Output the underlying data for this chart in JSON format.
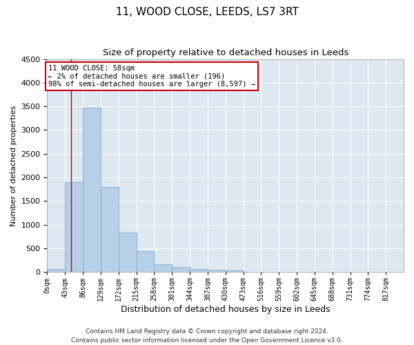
{
  "title": "11, WOOD CLOSE, LEEDS, LS7 3RT",
  "subtitle": "Size of property relative to detached houses in Leeds",
  "xlabel": "Distribution of detached houses by size in Leeds",
  "ylabel": "Number of detached properties",
  "bar_color": "#b8cfe8",
  "bar_edgecolor": "#7aaad0",
  "background_color": "#dde8f0",
  "grid_color": "#ffffff",
  "property_sqm": 58,
  "annotation_line1": "11 WOOD CLOSE: 58sqm",
  "annotation_line2": "← 2% of detached houses are smaller (196)",
  "annotation_line3": "98% of semi-detached houses are larger (8,597) →",
  "annotation_box_color": "#ffffff",
  "annotation_box_edgecolor": "#cc0000",
  "redline_color": "#cc0000",
  "bin_edges": [
    0,
    43,
    86,
    129,
    172,
    215,
    258,
    301,
    344,
    387,
    430,
    473,
    516,
    559,
    602,
    645,
    688,
    731,
    774,
    817,
    860
  ],
  "bar_heights": [
    55,
    1900,
    3480,
    1790,
    840,
    440,
    165,
    110,
    65,
    42,
    28,
    0,
    0,
    0,
    0,
    0,
    0,
    0,
    0,
    0
  ],
  "ylim": [
    0,
    4500
  ],
  "yticks": [
    0,
    500,
    1000,
    1500,
    2000,
    2500,
    3000,
    3500,
    4000,
    4500
  ],
  "footer_text": "Contains HM Land Registry data © Crown copyright and database right 2024.\nContains public sector information licensed under the Open Government Licence v3.0.",
  "title_fontsize": 11,
  "subtitle_fontsize": 9.5,
  "xlabel_fontsize": 9,
  "ylabel_fontsize": 8,
  "footer_fontsize": 6.5,
  "tick_fontsize": 7,
  "ytick_fontsize": 8
}
